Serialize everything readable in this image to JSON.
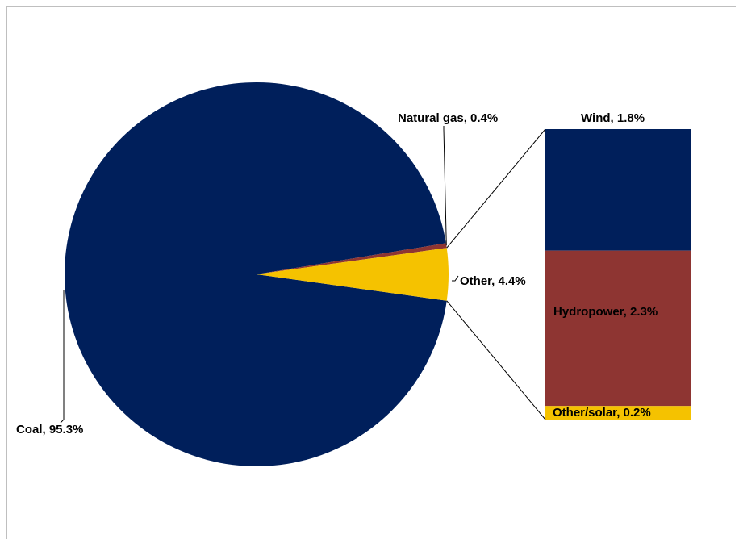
{
  "chart_data": {
    "type": "pie",
    "variant": "bar-of-pie",
    "pie": {
      "slices": [
        {
          "label": "Coal",
          "value": 95.3,
          "display": "Coal, 95.3%",
          "color": "#001F5B"
        },
        {
          "label": "Natural gas",
          "value": 0.4,
          "display": "Natural gas, 0.4%",
          "color": "#8E3532"
        },
        {
          "label": "Other",
          "value": 4.4,
          "display": "Other, 4.4%",
          "color": "#F5C200"
        }
      ]
    },
    "bar": {
      "breakdown_of": "Other",
      "segments": [
        {
          "label": "Wind",
          "value": 1.8,
          "display": "Wind, 1.8%",
          "color": "#001F5B"
        },
        {
          "label": "Hydropower",
          "value": 2.3,
          "display": "Hydropower, 2.3%",
          "color": "#8E3532"
        },
        {
          "label": "Other/solar",
          "value": 0.2,
          "display": "Other/solar, 0.2%",
          "color": "#F5C200"
        }
      ]
    },
    "legend": "none",
    "title": ""
  }
}
